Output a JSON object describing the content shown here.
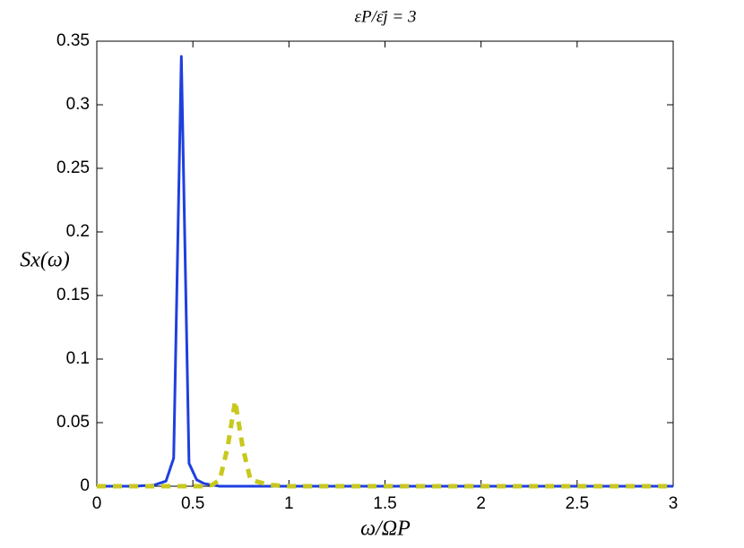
{
  "chart_data": {
    "type": "line",
    "title": "εP/ε̄j = 3",
    "x_label": "ω/ΩP",
    "y_label": "Sx(ω)",
    "x": [
      0,
      0.1,
      0.2,
      0.3,
      0.36,
      0.4,
      0.44,
      0.48,
      0.52,
      0.56,
      0.6,
      0.64,
      0.68,
      0.72,
      0.76,
      0.8,
      0.9,
      1.0,
      1.5,
      2,
      2.5,
      3
    ],
    "series": [
      {
        "color": "#1f3fdf",
        "style": "solid",
        "values": [
          0,
          0,
          0,
          0.001,
          0.004,
          0.022,
          0.338,
          0.018,
          0.005,
          0.002,
          0.001,
          0,
          0,
          0,
          0,
          0,
          0,
          0,
          0,
          0,
          0,
          0
        ]
      },
      {
        "color": "#c8c81e",
        "style": "dashed",
        "values": [
          0,
          0,
          0,
          0,
          0,
          0,
          0,
          0,
          0,
          0,
          0.001,
          0.005,
          0.03,
          0.067,
          0.03,
          0.005,
          0.001,
          0,
          0,
          0,
          0,
          0
        ]
      }
    ],
    "xlim": [
      0,
      3
    ],
    "xticks": [
      0,
      0.5,
      1,
      1.5,
      2,
      2.5,
      3
    ],
    "ylim": [
      0,
      0.35
    ],
    "yticks": [
      0,
      0.05,
      0.1,
      0.15,
      0.2,
      0.25,
      0.3,
      0.35
    ],
    "grid": false
  }
}
